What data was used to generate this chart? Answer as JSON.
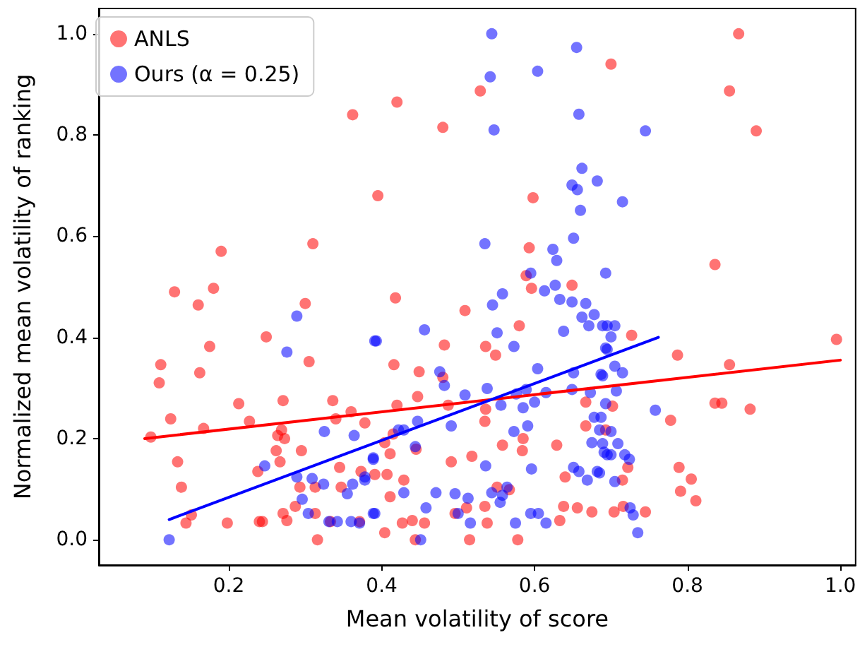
{
  "chart_data": {
    "type": "scatter",
    "xlabel": "Mean volatility of score",
    "ylabel": "Normalized mean volatility of ranking",
    "xlim": [
      0.03,
      1.02
    ],
    "ylim": [
      -0.05,
      1.05
    ],
    "xticks": [
      0.2,
      0.4,
      0.6,
      0.8,
      {
        "value": 1,
        "label": "1.0"
      }
    ],
    "yticks": [
      {
        "value": 0,
        "label": "0.0"
      },
      0.2,
      0.4,
      0.6,
      0.8,
      {
        "value": 1,
        "label": "1.0"
      }
    ],
    "grid": false,
    "legend": "top left",
    "marker": "circle",
    "series": [
      {
        "name": "ANLS",
        "color": "#ff0000",
        "x": [
          0.19,
          0.31,
          0.395,
          0.362,
          0.42,
          0.48,
          0.867,
          0.7,
          0.529,
          0.855,
          0.89,
          0.598,
          0.593,
          0.836,
          0.727,
          0.787,
          0.855,
          0.995,
          0.836,
          0.845,
          0.882,
          0.778,
          0.789,
          0.805,
          0.791,
          0.811,
          0.745,
          0.704,
          0.716,
          0.722,
          0.715,
          0.702,
          0.098,
          0.129,
          0.18,
          0.16,
          0.175,
          0.111,
          0.109,
          0.162,
          0.124,
          0.167,
          0.133,
          0.138,
          0.151,
          0.144,
          0.198,
          0.213,
          0.227,
          0.249,
          0.3,
          0.305,
          0.271,
          0.269,
          0.264,
          0.273,
          0.262,
          0.267,
          0.295,
          0.238,
          0.24,
          0.244,
          0.271,
          0.276,
          0.287,
          0.293,
          0.313,
          0.313,
          0.316,
          0.336,
          0.34,
          0.36,
          0.345,
          0.347,
          0.333,
          0.371,
          0.373,
          0.378,
          0.418,
          0.509,
          0.58,
          0.482,
          0.536,
          0.549,
          0.416,
          0.449,
          0.48,
          0.447,
          0.42,
          0.487,
          0.536,
          0.535,
          0.667,
          0.667,
          0.404,
          0.415,
          0.411,
          0.445,
          0.558,
          0.585,
          0.584,
          0.629,
          0.693,
          0.491,
          0.518,
          0.64,
          0.407,
          0.391,
          0.429,
          0.411,
          0.551,
          0.567,
          0.511,
          0.535,
          0.496,
          0.427,
          0.44,
          0.456,
          0.538,
          0.638,
          0.656,
          0.675,
          0.633,
          0.404,
          0.444,
          0.515,
          0.578,
          0.589,
          0.596,
          0.649
        ],
        "values": [
          0.57,
          0.585,
          0.68,
          0.84,
          0.865,
          0.815,
          1.0,
          0.94,
          0.887,
          0.887,
          0.808,
          0.676,
          0.577,
          0.544,
          0.404,
          0.365,
          0.346,
          0.396,
          0.27,
          0.27,
          0.258,
          0.236,
          0.143,
          0.12,
          0.096,
          0.077,
          0.055,
          0.055,
          0.066,
          0.143,
          0.118,
          0.264,
          0.203,
          0.49,
          0.497,
          0.464,
          0.382,
          0.346,
          0.31,
          0.33,
          0.239,
          0.22,
          0.154,
          0.104,
          0.049,
          0.033,
          0.033,
          0.269,
          0.234,
          0.401,
          0.467,
          0.352,
          0.275,
          0.217,
          0.206,
          0.2,
          0.176,
          0.154,
          0.176,
          0.135,
          0.036,
          0.036,
          0.052,
          0.038,
          0.066,
          0.104,
          0.104,
          0.052,
          0.0,
          0.275,
          0.239,
          0.253,
          0.143,
          0.104,
          0.036,
          0.036,
          0.135,
          0.231,
          0.478,
          0.453,
          0.423,
          0.385,
          0.382,
          0.365,
          0.346,
          0.332,
          0.321,
          0.283,
          0.266,
          0.266,
          0.258,
          0.234,
          0.272,
          0.225,
          0.192,
          0.209,
          0.17,
          0.179,
          0.187,
          0.2,
          0.176,
          0.187,
          0.217,
          0.154,
          0.165,
          0.124,
          0.129,
          0.129,
          0.118,
          0.085,
          0.104,
          0.099,
          0.063,
          0.066,
          0.052,
          0.033,
          0.038,
          0.033,
          0.033,
          0.066,
          0.063,
          0.055,
          0.038,
          0.014,
          0.0,
          0.0,
          0.0,
          0.522,
          0.497,
          0.503
        ]
      },
      {
        "name": "Ours (α = 0.25)",
        "color": "#0000ff",
        "x": [
          0.122,
          0.289,
          0.276,
          0.247,
          0.325,
          0.364,
          0.289,
          0.309,
          0.324,
          0.296,
          0.304,
          0.331,
          0.342,
          0.36,
          0.355,
          0.362,
          0.378,
          0.371,
          0.391,
          0.389,
          0.389,
          0.456,
          0.393,
          0.551,
          0.573,
          0.545,
          0.558,
          0.613,
          0.627,
          0.633,
          0.649,
          0.667,
          0.662,
          0.678,
          0.671,
          0.689,
          0.638,
          0.693,
          0.693,
          0.595,
          0.476,
          0.482,
          0.604,
          0.509,
          0.538,
          0.556,
          0.576,
          0.589,
          0.615,
          0.649,
          0.673,
          0.6,
          0.651,
          0.687,
          0.585,
          0.491,
          0.447,
          0.429,
          0.422,
          0.573,
          0.591,
          0.678,
          0.685,
          0.675,
          0.689,
          0.695,
          0.444,
          0.389,
          0.378,
          0.536,
          0.596,
          0.651,
          0.658,
          0.669,
          0.682,
          0.429,
          0.471,
          0.496,
          0.513,
          0.544,
          0.555,
          0.564,
          0.558,
          0.458,
          0.391,
          0.5,
          0.516,
          0.575,
          0.595,
          0.605,
          0.615,
          0.451,
          0.695,
          0.705,
          0.7,
          0.695,
          0.705,
          0.715,
          0.689,
          0.707,
          0.693,
          0.758,
          0.687,
          0.7,
          0.709,
          0.691,
          0.7,
          0.718,
          0.724,
          0.685,
          0.705,
          0.725,
          0.729,
          0.735,
          0.544,
          0.655,
          0.542,
          0.604,
          0.658,
          0.547,
          0.745,
          0.662,
          0.682,
          0.649,
          0.656,
          0.66,
          0.715,
          0.535,
          0.651,
          0.624,
          0.629
        ],
        "values": [
          0.0,
          0.442,
          0.371,
          0.146,
          0.214,
          0.206,
          0.124,
          0.121,
          0.11,
          0.08,
          0.052,
          0.036,
          0.036,
          0.036,
          0.091,
          0.11,
          0.118,
          0.033,
          0.393,
          0.159,
          0.052,
          0.415,
          0.393,
          0.409,
          0.382,
          0.464,
          0.486,
          0.492,
          0.503,
          0.475,
          0.47,
          0.467,
          0.44,
          0.445,
          0.423,
          0.423,
          0.412,
          0.379,
          0.527,
          0.527,
          0.332,
          0.305,
          0.338,
          0.286,
          0.299,
          0.266,
          0.288,
          0.297,
          0.291,
          0.297,
          0.291,
          0.272,
          0.33,
          0.327,
          0.261,
          0.225,
          0.234,
          0.217,
          0.217,
          0.214,
          0.225,
          0.242,
          0.217,
          0.192,
          0.19,
          0.168,
          0.184,
          0.162,
          0.124,
          0.146,
          0.14,
          0.143,
          0.135,
          0.118,
          0.135,
          0.093,
          0.093,
          0.091,
          0.082,
          0.093,
          0.074,
          0.104,
          0.088,
          0.063,
          0.052,
          0.052,
          0.033,
          0.033,
          0.052,
          0.052,
          0.033,
          0.0,
          0.423,
          0.423,
          0.401,
          0.376,
          0.343,
          0.33,
          0.324,
          0.294,
          0.269,
          0.256,
          0.242,
          0.214,
          0.19,
          0.173,
          0.168,
          0.168,
          0.159,
          0.132,
          0.115,
          0.063,
          0.049,
          0.014,
          1.0,
          0.973,
          0.915,
          0.926,
          0.841,
          0.81,
          0.808,
          0.734,
          0.709,
          0.701,
          0.692,
          0.651,
          0.668,
          0.585,
          0.596,
          0.574,
          0.552
        ]
      },
      {
        "type": "line",
        "marker": "none",
        "color": "#ff0000",
        "x": [
          0.09,
          1.0
        ],
        "values": [
          0.2,
          0.355
        ]
      },
      {
        "type": "line",
        "marker": "none",
        "color": "#0000ff",
        "x": [
          0.122,
          0.762
        ],
        "values": [
          0.04,
          0.4
        ]
      }
    ]
  }
}
